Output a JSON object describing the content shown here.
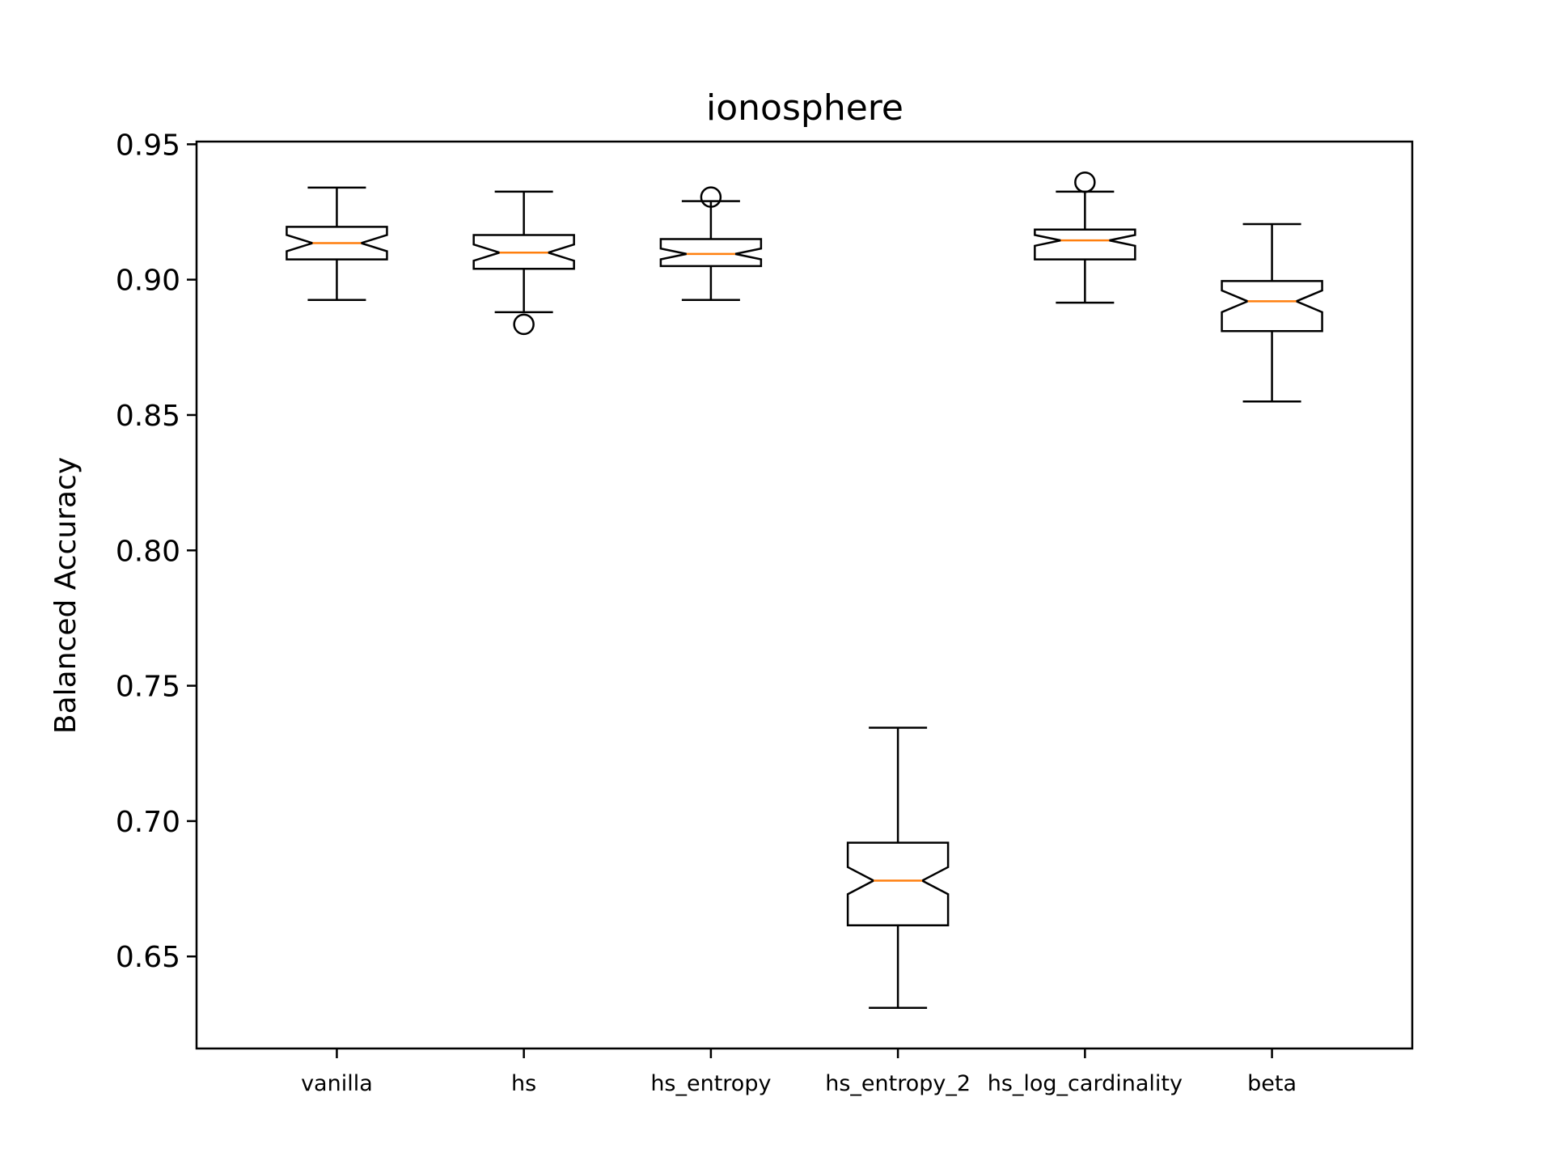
{
  "chart_data": {
    "type": "boxplot",
    "title": "ionosphere",
    "xlabel": "",
    "ylabel": "Balanced Accuracy",
    "ylim": [
      0.616,
      0.951
    ],
    "yticks": [
      "0.65",
      "0.70",
      "0.75",
      "0.80",
      "0.85",
      "0.90",
      "0.95"
    ],
    "ytick_values": [
      0.65,
      0.7,
      0.75,
      0.8,
      0.85,
      0.9,
      0.95
    ],
    "categories": [
      "vanilla",
      "hs",
      "hs_entropy",
      "hs_entropy_2",
      "hs_log_cardinality",
      "beta"
    ],
    "notched": true,
    "boxes": [
      {
        "name": "vanilla",
        "whislo": 0.8925,
        "q1": 0.9075,
        "med": 0.9135,
        "q3": 0.9195,
        "whishi": 0.934,
        "notch_lo": 0.9105,
        "notch_hi": 0.9165,
        "fliers": []
      },
      {
        "name": "hs",
        "whislo": 0.888,
        "q1": 0.904,
        "med": 0.91,
        "q3": 0.9165,
        "whishi": 0.9325,
        "notch_lo": 0.907,
        "notch_hi": 0.913,
        "fliers": [
          0.8835
        ]
      },
      {
        "name": "hs_entropy",
        "whislo": 0.8925,
        "q1": 0.905,
        "med": 0.9095,
        "q3": 0.915,
        "whishi": 0.929,
        "notch_lo": 0.9075,
        "notch_hi": 0.9115,
        "fliers": [
          0.9305
        ]
      },
      {
        "name": "hs_entropy_2",
        "whislo": 0.631,
        "q1": 0.6615,
        "med": 0.678,
        "q3": 0.692,
        "whishi": 0.7345,
        "notch_lo": 0.673,
        "notch_hi": 0.683,
        "fliers": []
      },
      {
        "name": "hs_log_cardinality",
        "whislo": 0.8915,
        "q1": 0.9075,
        "med": 0.9145,
        "q3": 0.9185,
        "whishi": 0.9325,
        "notch_lo": 0.9125,
        "notch_hi": 0.9165,
        "fliers": [
          0.936
        ]
      },
      {
        "name": "beta",
        "whislo": 0.855,
        "q1": 0.881,
        "med": 0.892,
        "q3": 0.8995,
        "whishi": 0.9205,
        "notch_lo": 0.888,
        "notch_hi": 0.896,
        "fliers": []
      }
    ],
    "colors": {
      "box": "#000000",
      "median": "#ff7f0e",
      "axes": "#000000"
    },
    "grid": false,
    "legend": "none"
  }
}
